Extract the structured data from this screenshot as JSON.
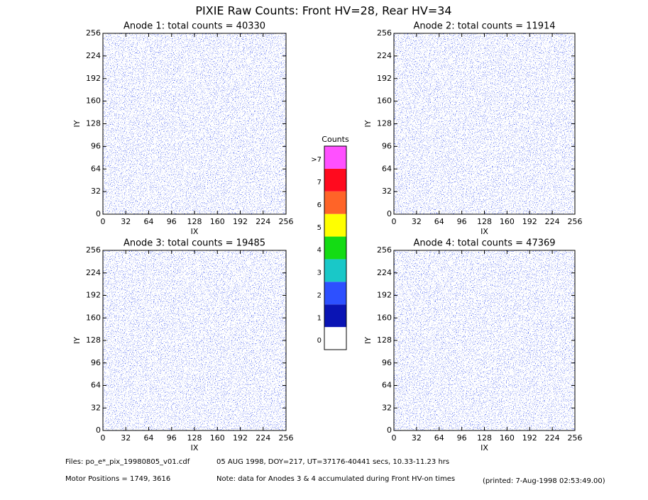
{
  "title": "PIXIE Raw Counts:  Front HV=28, Rear HV=34",
  "chart_data": [
    {
      "type": "heatmap",
      "title": "Anode 1: total counts = 40330",
      "xlabel": "IX",
      "ylabel": "IY",
      "xlim": [
        0,
        256
      ],
      "ylim": [
        0,
        256
      ],
      "xticks": [
        0,
        32,
        64,
        96,
        128,
        160,
        192,
        224,
        256
      ],
      "yticks": [
        0,
        32,
        64,
        96,
        128,
        160,
        192,
        224,
        256
      ]
    },
    {
      "type": "heatmap",
      "title": "Anode 2: total counts = 11914",
      "xlabel": "IX",
      "ylabel": "IY",
      "xlim": [
        0,
        256
      ],
      "ylim": [
        0,
        256
      ],
      "xticks": [
        0,
        32,
        64,
        96,
        128,
        160,
        192,
        224,
        256
      ],
      "yticks": [
        0,
        32,
        64,
        96,
        128,
        160,
        192,
        224,
        256
      ]
    },
    {
      "type": "heatmap",
      "title": "Anode 3: total counts = 19485",
      "xlabel": "IX",
      "ylabel": "IY",
      "xlim": [
        0,
        256
      ],
      "ylim": [
        0,
        256
      ],
      "xticks": [
        0,
        32,
        64,
        96,
        128,
        160,
        192,
        224,
        256
      ],
      "yticks": [
        0,
        32,
        64,
        96,
        128,
        160,
        192,
        224,
        256
      ]
    },
    {
      "type": "heatmap",
      "title": "Anode 4: total counts = 47369",
      "xlabel": "IX",
      "ylabel": "IY",
      "xlim": [
        0,
        256
      ],
      "ylim": [
        0,
        256
      ],
      "xticks": [
        0,
        32,
        64,
        96,
        128,
        160,
        192,
        224,
        256
      ],
      "yticks": [
        0,
        32,
        64,
        96,
        128,
        160,
        192,
        224,
        256
      ]
    }
  ],
  "colorbar": {
    "title": "Counts",
    "levels": [
      0,
      1,
      2,
      3,
      4,
      5,
      6,
      7,
      ">7"
    ],
    "colors": [
      "#ffffff",
      "#0a14b4",
      "#2d50ff",
      "#19c8c8",
      "#14dc14",
      "#ffff00",
      "#ff6428",
      "#ff0a1e",
      "#ff50ff"
    ]
  },
  "footer": {
    "files": "Files: po_e*_pix_19980805_v01.cdf",
    "date": "05 AUG 1998, DOY=217, UT=37176-40441 secs, 10.33-11.23 hrs",
    "motor": "Motor Positions = 1749, 3616",
    "note": "Note: data for Anodes 3 & 4 accumulated during Front HV-on times",
    "printed": "(printed:  7-Aug-1998 02:53:49.00)"
  }
}
